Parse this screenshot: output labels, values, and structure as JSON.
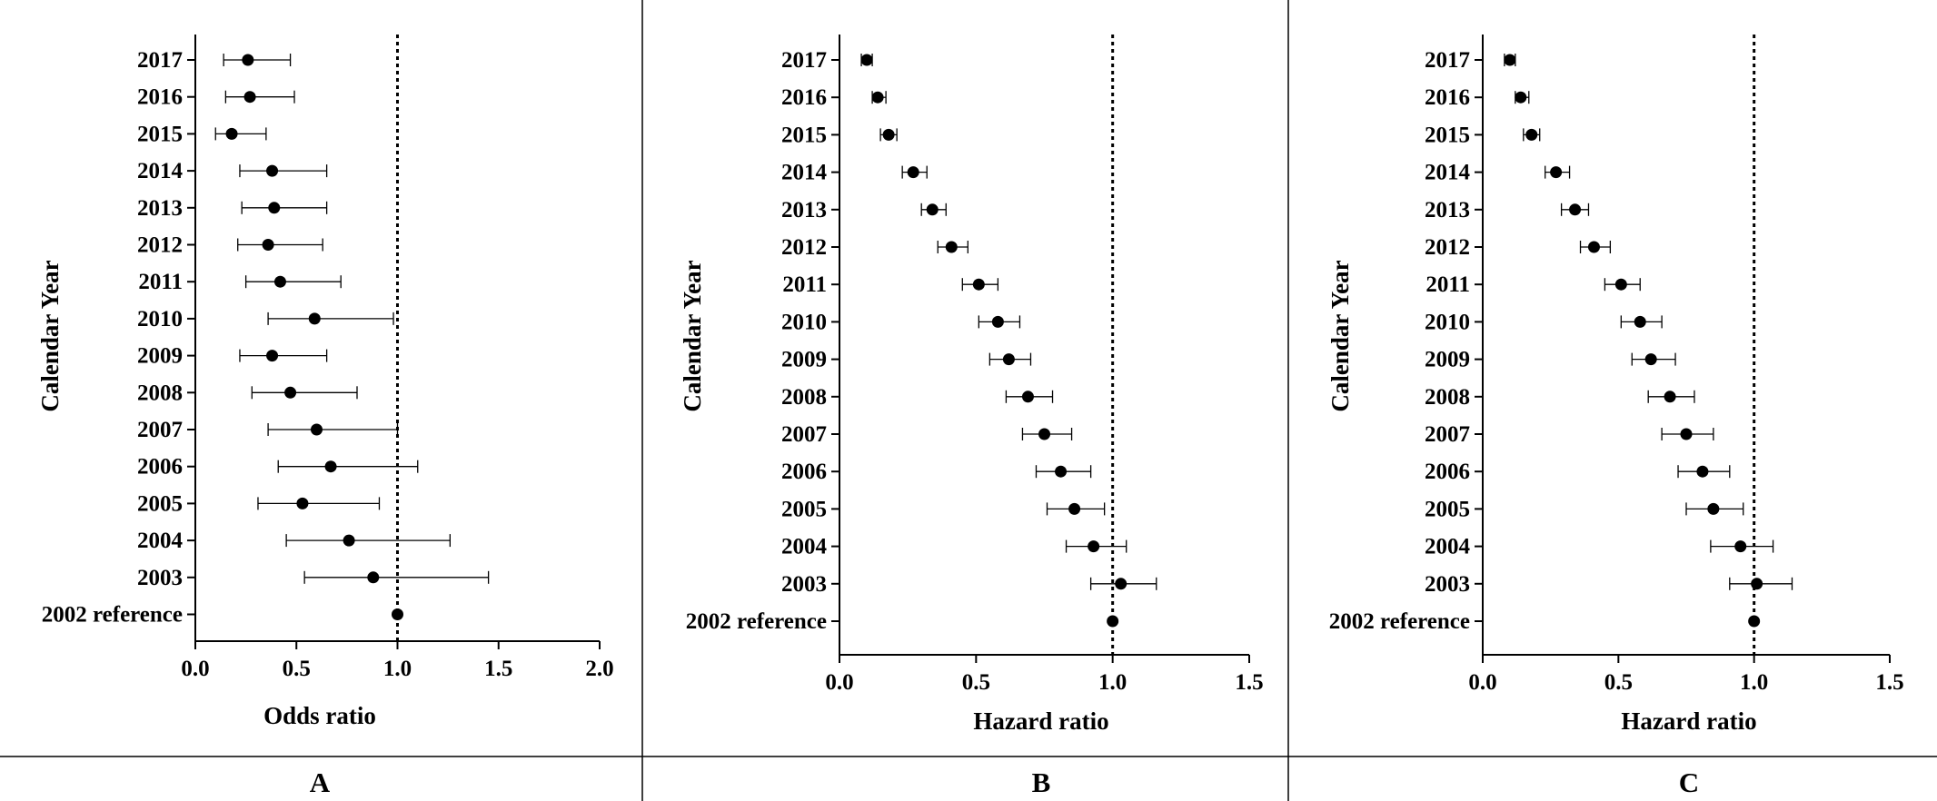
{
  "chart_data": [
    {
      "type": "forest",
      "panel_label": "A",
      "xlabel": "Odds ratio",
      "ylabel": "Calendar Year",
      "xlim": [
        0,
        2
      ],
      "xticks": [
        "0.0",
        "0.5",
        "1.0",
        "1.5",
        "2.0"
      ],
      "reference_line": 1.0,
      "categories": [
        "2017",
        "2016",
        "2015",
        "2014",
        "2013",
        "2012",
        "2011",
        "2010",
        "2009",
        "2008",
        "2007",
        "2006",
        "2005",
        "2004",
        "2003",
        "2002 reference"
      ],
      "estimates": [
        0.26,
        0.27,
        0.18,
        0.38,
        0.39,
        0.36,
        0.42,
        0.59,
        0.38,
        0.47,
        0.6,
        0.67,
        0.53,
        0.76,
        0.88,
        1.0
      ],
      "lower": [
        0.14,
        0.15,
        0.1,
        0.22,
        0.23,
        0.21,
        0.25,
        0.36,
        0.22,
        0.28,
        0.36,
        0.41,
        0.31,
        0.45,
        0.54,
        1.0
      ],
      "upper": [
        0.47,
        0.49,
        0.35,
        0.65,
        0.65,
        0.63,
        0.72,
        0.98,
        0.65,
        0.8,
        1.0,
        1.1,
        0.91,
        1.26,
        1.45,
        1.0
      ]
    },
    {
      "type": "forest",
      "panel_label": "B",
      "xlabel": "Hazard ratio",
      "ylabel": "Calendar Year",
      "xlim": [
        0,
        1.5
      ],
      "xticks": [
        "0.0",
        "0.5",
        "1.0",
        "1.5"
      ],
      "reference_line": 1.0,
      "categories": [
        "2017",
        "2016",
        "2015",
        "2014",
        "2013",
        "2012",
        "2011",
        "2010",
        "2009",
        "2008",
        "2007",
        "2006",
        "2005",
        "2004",
        "2003",
        "2002 reference"
      ],
      "estimates": [
        0.1,
        0.14,
        0.18,
        0.27,
        0.34,
        0.41,
        0.51,
        0.58,
        0.62,
        0.69,
        0.75,
        0.81,
        0.86,
        0.93,
        1.03,
        1.0
      ],
      "lower": [
        0.08,
        0.12,
        0.15,
        0.23,
        0.3,
        0.36,
        0.45,
        0.51,
        0.55,
        0.61,
        0.67,
        0.72,
        0.76,
        0.83,
        0.92,
        1.0
      ],
      "upper": [
        0.12,
        0.17,
        0.21,
        0.32,
        0.39,
        0.47,
        0.58,
        0.66,
        0.7,
        0.78,
        0.85,
        0.92,
        0.97,
        1.05,
        1.16,
        1.0
      ]
    },
    {
      "type": "forest",
      "panel_label": "C",
      "xlabel": "Hazard ratio",
      "ylabel": "Calendar Year",
      "xlim": [
        0,
        1.5
      ],
      "xticks": [
        "0.0",
        "0.5",
        "1.0",
        "1.5"
      ],
      "reference_line": 1.0,
      "categories": [
        "2017",
        "2016",
        "2015",
        "2014",
        "2013",
        "2012",
        "2011",
        "2010",
        "2009",
        "2008",
        "2007",
        "2006",
        "2005",
        "2004",
        "2003",
        "2002 reference"
      ],
      "estimates": [
        0.1,
        0.14,
        0.18,
        0.27,
        0.34,
        0.41,
        0.51,
        0.58,
        0.62,
        0.69,
        0.75,
        0.81,
        0.85,
        0.95,
        1.01,
        1.0
      ],
      "lower": [
        0.08,
        0.12,
        0.15,
        0.23,
        0.29,
        0.36,
        0.45,
        0.51,
        0.55,
        0.61,
        0.66,
        0.72,
        0.75,
        0.84,
        0.91,
        1.0
      ],
      "upper": [
        0.12,
        0.17,
        0.21,
        0.32,
        0.39,
        0.47,
        0.58,
        0.66,
        0.71,
        0.78,
        0.85,
        0.91,
        0.96,
        1.07,
        1.14,
        1.0
      ]
    }
  ]
}
